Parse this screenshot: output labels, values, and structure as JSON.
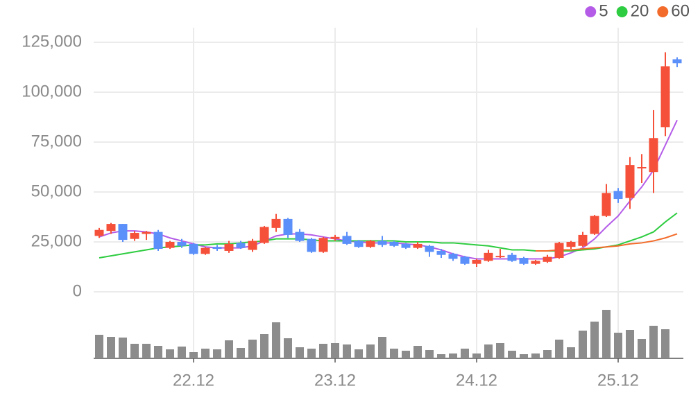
{
  "chart_data": {
    "type": "candlestick",
    "categories": [
      null,
      null,
      null,
      null,
      null,
      null,
      null,
      null,
      "22.12",
      null,
      null,
      null,
      null,
      null,
      null,
      null,
      null,
      null,
      null,
      null,
      "23.12",
      null,
      null,
      null,
      null,
      null,
      null,
      null,
      null,
      null,
      null,
      null,
      "24.12",
      null,
      null,
      null,
      null,
      null,
      null,
      null,
      null,
      null,
      null,
      null,
      "25.12",
      null,
      null,
      null,
      null,
      null
    ],
    "open": [
      28000,
      30500,
      34000,
      26500,
      29000,
      30000,
      22000,
      25000,
      24000,
      19000,
      22500,
      20500,
      24500,
      21000,
      24500,
      32000,
      36500,
      30000,
      26500,
      20000,
      26500,
      28000,
      25500,
      22500,
      25500,
      25000,
      24000,
      22000,
      23000,
      20500,
      19000,
      17500,
      14000,
      15500,
      17500,
      18500,
      17000,
      14000,
      15000,
      17000,
      22500,
      23000,
      29000,
      38000,
      50500,
      47000,
      62000,
      60000,
      82500,
      116500
    ],
    "high": [
      32000,
      34500,
      34000,
      30500,
      30500,
      31000,
      25500,
      26500,
      24500,
      22500,
      23500,
      25500,
      25500,
      26500,
      33000,
      39000,
      37000,
      31500,
      27000,
      27500,
      28500,
      30000,
      26000,
      26000,
      28000,
      25500,
      24500,
      25000,
      23500,
      21500,
      19500,
      18000,
      16500,
      21000,
      21500,
      19500,
      17500,
      16000,
      18500,
      25000,
      25500,
      30000,
      38500,
      54000,
      52000,
      67500,
      69000,
      91000,
      120000,
      117500
    ],
    "low": [
      27000,
      29000,
      25000,
      25500,
      26000,
      20500,
      21500,
      22000,
      18500,
      18500,
      20500,
      19500,
      21500,
      20000,
      24000,
      30000,
      27000,
      25000,
      19500,
      19500,
      25500,
      23500,
      22000,
      22000,
      22500,
      22500,
      21500,
      21500,
      17500,
      17000,
      15500,
      13500,
      12500,
      15000,
      17000,
      15000,
      13500,
      13500,
      14500,
      16500,
      21500,
      22500,
      28500,
      37500,
      44500,
      41500,
      54500,
      49500,
      78000,
      112500
    ],
    "close": [
      31000,
      34000,
      26000,
      29500,
      30000,
      21500,
      25000,
      23000,
      19000,
      22000,
      21500,
      24000,
      22000,
      25500,
      32500,
      36500,
      28500,
      25500,
      20000,
      27000,
      27500,
      24000,
      22500,
      25500,
      23500,
      23000,
      22000,
      24000,
      20000,
      18500,
      16500,
      14000,
      16000,
      19500,
      18000,
      15500,
      14000,
      15500,
      17500,
      24500,
      25000,
      28500,
      38000,
      49500,
      46500,
      63500,
      62500,
      77000,
      113000,
      114500
    ],
    "volume": [
      34,
      31,
      30,
      21,
      21,
      18,
      13,
      17,
      9,
      14,
      13,
      26,
      15,
      27,
      35,
      52,
      29,
      16,
      14,
      21,
      22,
      20,
      13,
      20,
      31,
      14,
      11,
      18,
      12,
      6,
      7,
      14,
      7,
      20,
      22,
      11,
      6,
      7,
      12,
      27,
      16,
      40,
      53,
      70,
      37,
      41,
      28,
      47,
      42,
      null
    ],
    "up_color": "#f5503a",
    "down_color": "#5b8ff9",
    "volume_color": "#8c8c8c",
    "series": [
      {
        "name": "5",
        "color": "#b45ce8",
        "values": [
          27500,
          29500,
          30500,
          30500,
          30000,
          29000,
          27000,
          25500,
          24000,
          22500,
          22000,
          22000,
          22000,
          23000,
          25500,
          28000,
          29000,
          29000,
          28500,
          27500,
          26500,
          25500,
          25000,
          24500,
          24500,
          24500,
          24000,
          23500,
          22500,
          21000,
          19000,
          17500,
          16500,
          16500,
          16500,
          16500,
          16500,
          16500,
          16500,
          17500,
          19500,
          22000,
          26500,
          32500,
          38000,
          45500,
          52500,
          61000,
          73500,
          86000
        ]
      },
      {
        "name": "20",
        "color": "#2ecc40",
        "values": [
          17000,
          18000,
          19000,
          20000,
          21000,
          22000,
          22500,
          23000,
          23500,
          23500,
          24000,
          24000,
          24500,
          25000,
          25500,
          26500,
          26500,
          26500,
          26000,
          25500,
          25500,
          25500,
          25500,
          25500,
          25500,
          25500,
          25000,
          25000,
          25000,
          24500,
          24500,
          24000,
          23500,
          23000,
          22000,
          21000,
          21000,
          20500,
          20500,
          20500,
          20500,
          21000,
          21500,
          22500,
          23500,
          25500,
          27500,
          30000,
          35000,
          39500
        ]
      },
      {
        "name": "60",
        "color": "#f26b2a",
        "values": [
          null,
          null,
          null,
          null,
          null,
          null,
          null,
          null,
          null,
          null,
          null,
          null,
          null,
          null,
          null,
          null,
          null,
          null,
          null,
          null,
          null,
          null,
          null,
          null,
          null,
          null,
          null,
          null,
          null,
          null,
          null,
          null,
          null,
          null,
          null,
          null,
          null,
          20500,
          20500,
          21000,
          21000,
          21500,
          22000,
          22500,
          23000,
          24000,
          24500,
          25500,
          27000,
          29000
        ]
      }
    ],
    "ylim": [
      0,
      125000
    ],
    "yticks": [
      0,
      {
        "value": 25000,
        "label": "25,000"
      },
      {
        "value": 50000,
        "label": "50,000"
      },
      {
        "value": 75000,
        "label": "75,000"
      },
      {
        "value": 100000,
        "label": "100,000"
      },
      {
        "value": 125000,
        "label": "125,000"
      }
    ],
    "grid": true
  }
}
